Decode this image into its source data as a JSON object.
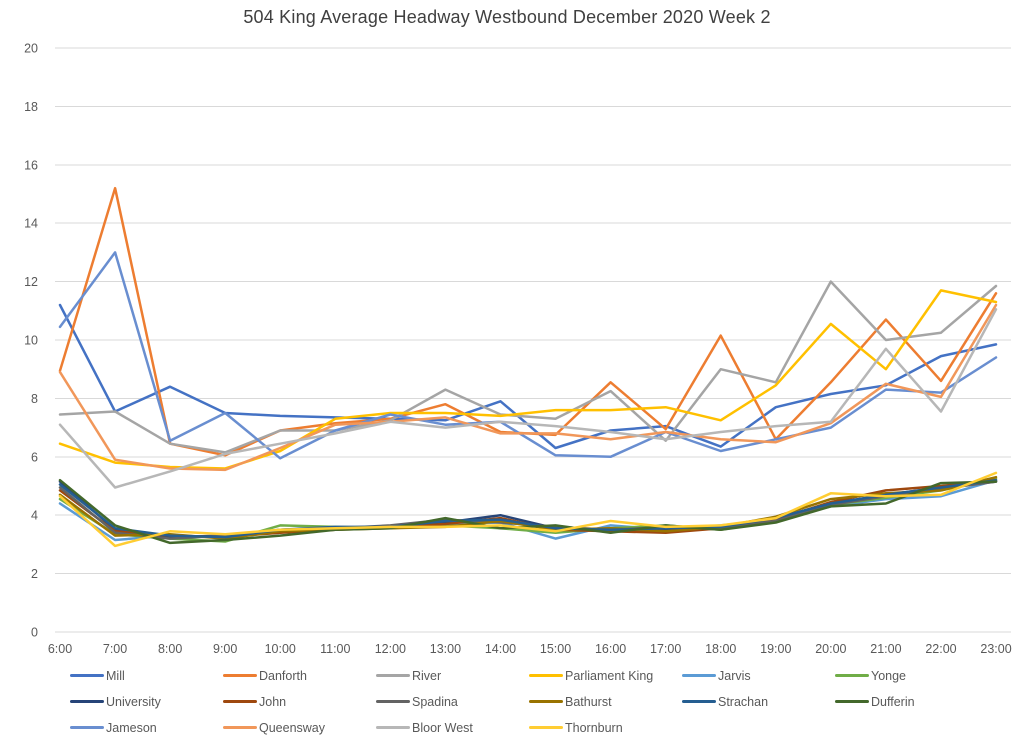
{
  "colors": {
    "grid": "#d9d9d9",
    "tick_text": "#595959",
    "title_text": "#404040",
    "background": "#ffffff"
  },
  "y_axis_title_fragment": ")",
  "chart_data": {
    "type": "line",
    "title": "504 King  Average Headway Westbound December 2020 Week 2",
    "xlabel": "",
    "ylabel": "",
    "ylim": [
      0,
      20
    ],
    "y_ticks": [
      0,
      2,
      4,
      6,
      8,
      10,
      12,
      14,
      16,
      18,
      20
    ],
    "grid": true,
    "legend_position": "bottom",
    "legend_columns": 6,
    "x_labels": [
      "6:00",
      "7:00",
      "8:00",
      "9:00",
      "10:00",
      "11:00",
      "12:00",
      "13:00",
      "14:00",
      "15:00",
      "16:00",
      "17:00",
      "18:00",
      "19:00",
      "20:00",
      "21:00",
      "22:00",
      "23:00"
    ],
    "series": [
      {
        "name": "Mill",
        "color": "#4472C4",
        "values": [
          11.2,
          7.55,
          8.4,
          7.5,
          7.4,
          7.35,
          7.3,
          7.25,
          7.9,
          6.3,
          6.9,
          7.05,
          6.35,
          7.7,
          8.15,
          8.45,
          9.45,
          9.85
        ]
      },
      {
        "name": "Danforth",
        "color": "#ED7D31",
        "values": [
          8.95,
          15.2,
          6.45,
          6.05,
          6.9,
          7.15,
          7.3,
          7.8,
          6.85,
          6.75,
          8.55,
          6.95,
          10.15,
          6.6,
          8.55,
          10.7,
          8.6,
          11.6
        ]
      },
      {
        "name": "River",
        "color": "#A5A5A5",
        "values": [
          7.45,
          7.55,
          6.45,
          6.15,
          6.9,
          6.9,
          7.25,
          8.3,
          7.45,
          7.3,
          8.25,
          6.55,
          9.0,
          8.55,
          12.0,
          10.0,
          10.25,
          11.85
        ]
      },
      {
        "name": "Parliament King",
        "color": "#FFC000",
        "values": [
          6.45,
          5.8,
          5.65,
          5.6,
          6.2,
          7.3,
          7.5,
          7.5,
          7.4,
          7.6,
          7.6,
          7.7,
          7.25,
          8.45,
          10.55,
          9.0,
          11.7,
          11.3
        ]
      },
      {
        "name": "Jarvis",
        "color": "#5B9BD5",
        "values": [
          4.4,
          3.15,
          3.3,
          3.25,
          3.5,
          3.55,
          3.55,
          3.7,
          3.75,
          3.2,
          3.65,
          3.5,
          3.65,
          3.85,
          4.3,
          4.55,
          4.65,
          5.2
        ]
      },
      {
        "name": "Yonge",
        "color": "#70AD47",
        "values": [
          4.55,
          3.35,
          3.2,
          3.1,
          3.65,
          3.6,
          3.55,
          3.65,
          3.55,
          3.4,
          3.55,
          3.65,
          3.5,
          3.8,
          4.35,
          4.6,
          4.85,
          5.25
        ]
      },
      {
        "name": "University",
        "color": "#264478",
        "values": [
          5.15,
          3.5,
          3.25,
          3.3,
          3.45,
          3.55,
          3.6,
          3.75,
          4.0,
          3.55,
          3.45,
          3.5,
          3.6,
          3.9,
          4.4,
          4.7,
          4.95,
          5.15
        ]
      },
      {
        "name": "John",
        "color": "#9E480E",
        "values": [
          4.85,
          3.45,
          3.3,
          3.25,
          3.4,
          3.5,
          3.6,
          3.7,
          3.9,
          3.5,
          3.45,
          3.4,
          3.55,
          3.85,
          4.45,
          4.85,
          5.0,
          5.2
        ]
      },
      {
        "name": "Spadina",
        "color": "#636363",
        "values": [
          4.95,
          3.4,
          3.2,
          3.3,
          3.5,
          3.55,
          3.65,
          3.85,
          3.75,
          3.6,
          3.5,
          3.6,
          3.55,
          3.8,
          4.35,
          4.65,
          4.9,
          5.15
        ]
      },
      {
        "name": "Bathurst",
        "color": "#997300",
        "values": [
          4.7,
          3.3,
          3.35,
          3.2,
          3.45,
          3.5,
          3.55,
          3.6,
          3.8,
          3.5,
          3.55,
          3.45,
          3.6,
          3.95,
          4.55,
          4.75,
          4.85,
          5.3
        ]
      },
      {
        "name": "Strachan",
        "color": "#255E91",
        "values": [
          5.05,
          3.55,
          3.3,
          3.25,
          3.5,
          3.6,
          3.6,
          3.8,
          3.85,
          3.55,
          3.5,
          3.55,
          3.6,
          3.9,
          4.4,
          4.7,
          4.95,
          5.2
        ]
      },
      {
        "name": "Dufferin",
        "color": "#43682B",
        "values": [
          5.2,
          3.65,
          3.05,
          3.15,
          3.3,
          3.5,
          3.55,
          3.9,
          3.55,
          3.65,
          3.4,
          3.65,
          3.5,
          3.75,
          4.3,
          4.4,
          5.1,
          5.15
        ]
      },
      {
        "name": "Jameson",
        "color": "#698ED0",
        "values": [
          10.45,
          13.0,
          6.55,
          7.5,
          5.95,
          6.9,
          7.45,
          7.1,
          7.2,
          6.05,
          6.0,
          6.85,
          6.2,
          6.6,
          7.0,
          8.3,
          8.2,
          9.4
        ]
      },
      {
        "name": "Queensway",
        "color": "#F1975A",
        "values": [
          8.9,
          5.9,
          5.6,
          5.55,
          6.3,
          7.1,
          7.2,
          7.35,
          6.8,
          6.8,
          6.6,
          6.85,
          6.6,
          6.5,
          7.15,
          8.5,
          8.05,
          11.2
        ]
      },
      {
        "name": "Bloor West",
        "color": "#B7B7B7",
        "values": [
          7.1,
          4.95,
          5.5,
          6.1,
          6.45,
          6.8,
          7.2,
          7.0,
          7.2,
          7.05,
          6.85,
          6.6,
          6.85,
          7.05,
          7.2,
          9.7,
          7.55,
          11.05
        ]
      },
      {
        "name": "Thornburn",
        "color": "#FFCD33",
        "values": [
          4.65,
          2.95,
          3.45,
          3.35,
          3.5,
          3.55,
          3.6,
          3.6,
          3.65,
          3.45,
          3.8,
          3.6,
          3.65,
          3.9,
          4.75,
          4.65,
          4.7,
          5.45
        ]
      }
    ]
  }
}
